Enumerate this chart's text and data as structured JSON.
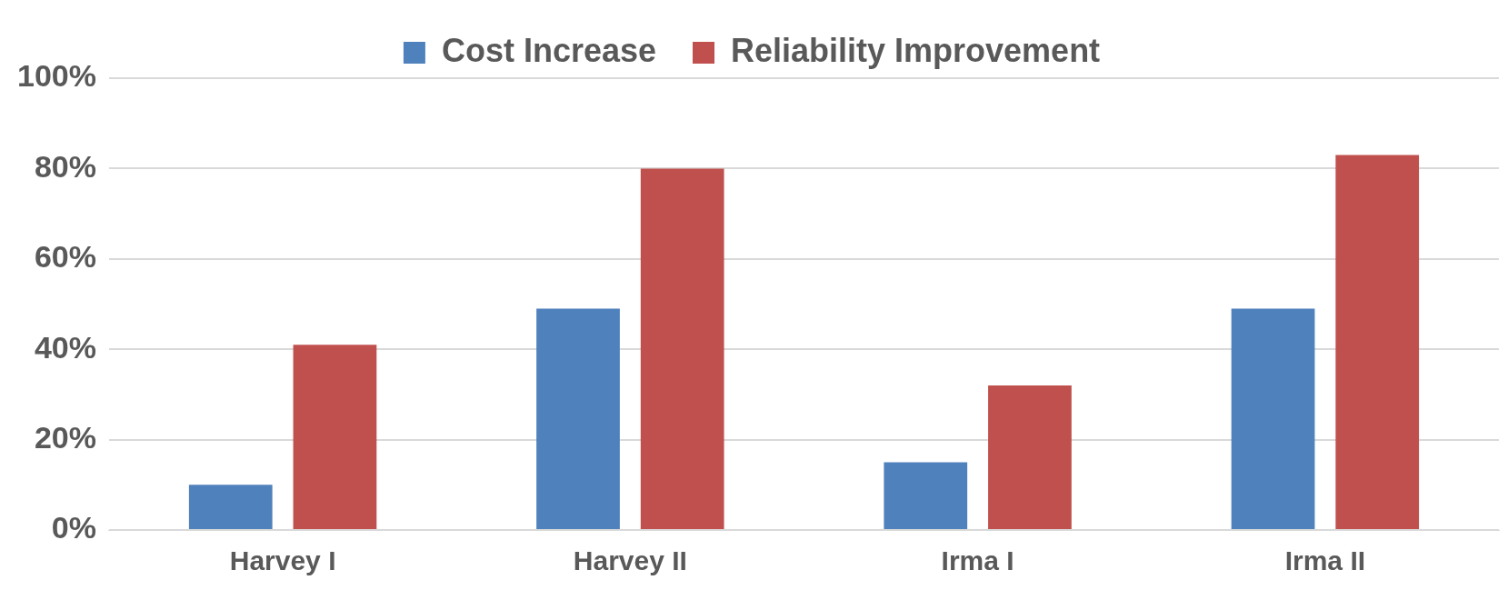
{
  "chart_data": {
    "type": "bar",
    "categories": [
      "Harvey I",
      "Harvey II",
      "Irma I",
      "Irma II"
    ],
    "series": [
      {
        "name": "Cost Increase",
        "color": "#4f81bd",
        "values": [
          10,
          49,
          15,
          49
        ]
      },
      {
        "name": "Reliability Improvement",
        "color": "#c0504d",
        "values": [
          41,
          80,
          32,
          83
        ]
      }
    ],
    "ylim": [
      0,
      100
    ],
    "yticks": [
      {
        "value": 0,
        "label": "0%"
      },
      {
        "value": 20,
        "label": "20%"
      },
      {
        "value": 40,
        "label": "40%"
      },
      {
        "value": 60,
        "label": "60%"
      },
      {
        "value": 80,
        "label": "80%"
      },
      {
        "value": 100,
        "label": "100%"
      }
    ],
    "grid": "y",
    "legend": "top"
  }
}
